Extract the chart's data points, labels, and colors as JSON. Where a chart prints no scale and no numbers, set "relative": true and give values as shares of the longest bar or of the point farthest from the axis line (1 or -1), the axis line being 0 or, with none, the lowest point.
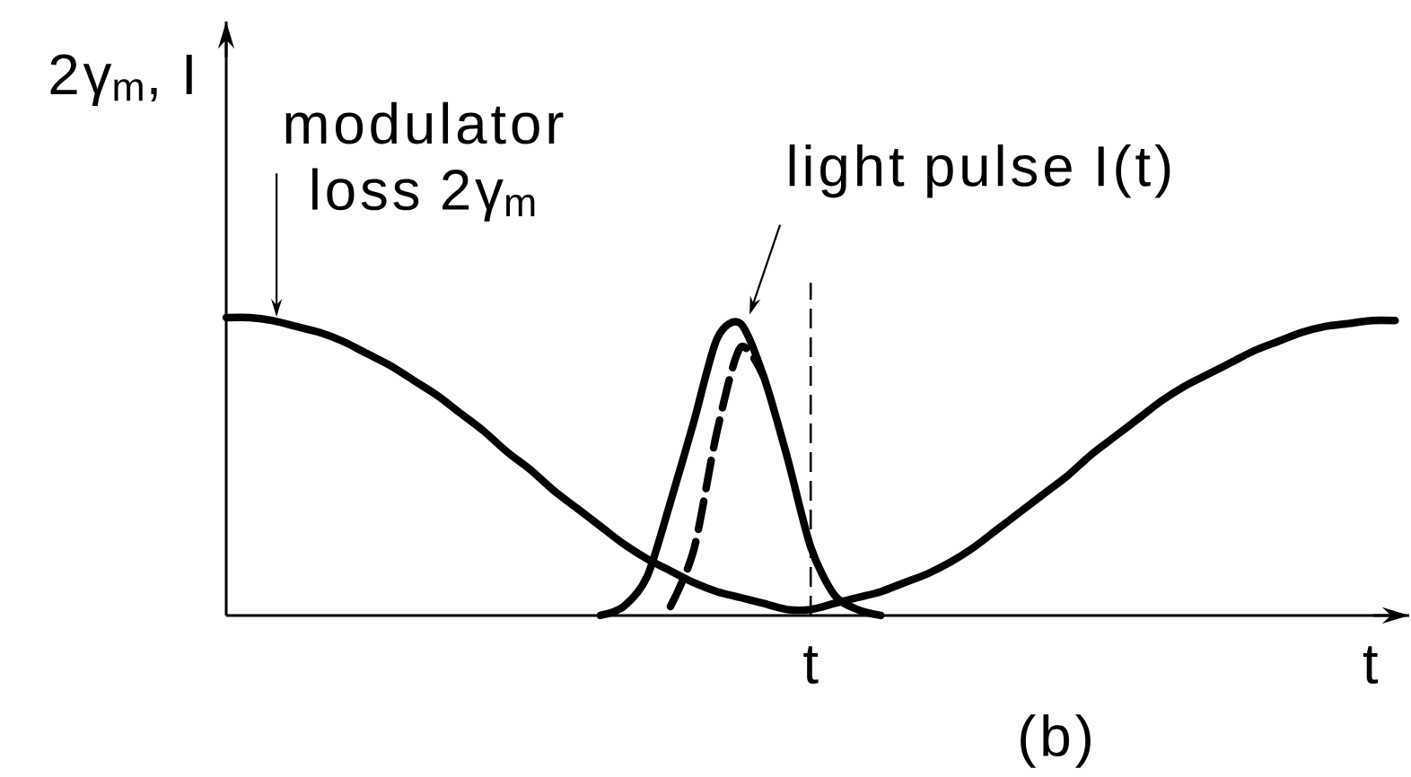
{
  "chart_data": {
    "type": "line",
    "relative": true,
    "ylabel": "2γ$_{m}$, I",
    "xlabel": "t",
    "categories": [
      null,
      null,
      null,
      null,
      null,
      null,
      null,
      null,
      null,
      null,
      null,
      null,
      null,
      null,
      null,
      null,
      null,
      null,
      null,
      null,
      null,
      null,
      null,
      null,
      null,
      null,
      null,
      null,
      null,
      null,
      null,
      null,
      null,
      null,
      null,
      null,
      null,
      null,
      null,
      null,
      null,
      null,
      null,
      null,
      null,
      null,
      null,
      null,
      null,
      null,
      null
    ],
    "series": [
      {
        "name": "modulator loss 2γ$_{m}$",
        "color": "#000000",
        "values": [
          1.0,
          1.0,
          0.99,
          0.97,
          0.95,
          0.92,
          0.88,
          0.84,
          0.79,
          0.74,
          0.68,
          0.62,
          0.55,
          0.49,
          0.42,
          0.36,
          0.3,
          0.24,
          0.19,
          0.15,
          0.11,
          0.08,
          0.06,
          0.04,
          0.02,
          0.02,
          0.04,
          0.06,
          0.08,
          0.11,
          0.14,
          0.18,
          0.23,
          0.29,
          0.35,
          0.41,
          0.47,
          0.54,
          0.6,
          0.66,
          0.72,
          0.77,
          0.81,
          0.85,
          0.89,
          0.92,
          0.95,
          0.97,
          0.98,
          0.99,
          0.99
        ]
      },
      {
        "name": "light pulse I(t)",
        "color": "#000000",
        "values": [
          null,
          null,
          null,
          null,
          null,
          null,
          null,
          null,
          null,
          null,
          null,
          null,
          null,
          null,
          null,
          null,
          0.0,
          0.03,
          0.13,
          0.38,
          0.65,
          0.93,
          0.98,
          0.8,
          0.53,
          0.23,
          0.07,
          0.02,
          0.0,
          null,
          null,
          null,
          null,
          null,
          null,
          null,
          null,
          null,
          null,
          null,
          null,
          null,
          null,
          null,
          null,
          null,
          null,
          null,
          null,
          null,
          null
        ]
      },
      {
        "color": "#000000",
        "line_style": "dashed",
        "values": [
          null,
          null,
          null,
          null,
          null,
          null,
          null,
          null,
          null,
          null,
          null,
          null,
          null,
          null,
          null,
          null,
          null,
          null,
          null,
          0.03,
          0.22,
          0.62,
          0.9,
          0.8,
          null,
          null,
          null,
          null,
          null,
          null,
          null,
          null,
          null,
          null,
          null,
          null,
          null,
          null,
          null,
          null,
          null,
          null,
          null,
          null,
          null,
          null,
          null,
          null,
          null,
          null,
          null
        ]
      }
    ],
    "annotations": [
      "t",
      "(b)"
    ]
  }
}
